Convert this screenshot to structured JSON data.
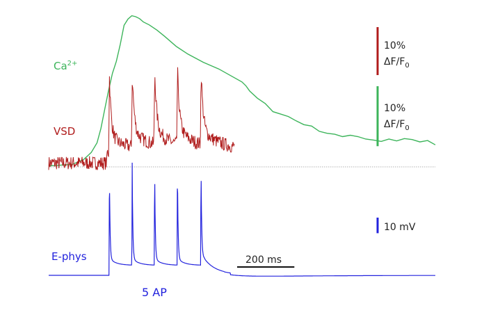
{
  "chart_data": {
    "type": "line",
    "title": "",
    "xlabel": "",
    "ylabel": "",
    "event_count": 5,
    "series": [
      {
        "name": "Ca²⁺",
        "label_main": "Ca",
        "label_sup": "2+",
        "color": "#3cb45a",
        "unit": "% ΔF/F0",
        "x": [
          0,
          60,
          90,
          110,
          125,
          135,
          145,
          155,
          165,
          175,
          185,
          195,
          205,
          215,
          225,
          235,
          245,
          260,
          280,
          300,
          330,
          360,
          400,
          440,
          480,
          500,
          510,
          520,
          540,
          560,
          580,
          600,
          620,
          640,
          660,
          680,
          700,
          720,
          740,
          760,
          780,
          800,
          820,
          840,
          860,
          880,
          900,
          920,
          940,
          960,
          980,
          1000
        ],
        "values": [
          0.2,
          0.5,
          1.5,
          3.0,
          5.0,
          8.0,
          12.0,
          16.0,
          19.5,
          22.0,
          25.5,
          29.5,
          30.8,
          31.5,
          31.3,
          30.9,
          30.2,
          29.6,
          28.5,
          27.2,
          25.1,
          23.5,
          21.8,
          20.4,
          18.6,
          17.7,
          16.9,
          15.8,
          14.3,
          13.2,
          11.5,
          11.0,
          10.5,
          9.6,
          8.8,
          8.5,
          7.4,
          7.0,
          6.8,
          6.3,
          6.6,
          6.3,
          5.8,
          5.6,
          5.3,
          5.8,
          5.4,
          5.9,
          5.7,
          5.2,
          5.5,
          4.6
        ]
      },
      {
        "name": "VSD",
        "color": "#b01c1c",
        "unit": "% ΔF/F0",
        "baseline": 0.8,
        "noise": 0.9,
        "spike_times": [
          157,
          216,
          274,
          333,
          394
        ],
        "spike_peak": 13.0,
        "x_range": [
          0,
          480
        ]
      },
      {
        "name": "E-phys",
        "color": "#2222dd",
        "unit": "mV",
        "baseline": 0.0,
        "spike_times": [
          157,
          216,
          274,
          333,
          394
        ],
        "spike_peak": 43.0,
        "x_range": [
          0,
          1000
        ]
      }
    ],
    "scale_bars": {
      "time": {
        "value": 200,
        "label": "200 ms"
      },
      "vsd": {
        "value": 10,
        "line1": "10%",
        "line2_main": "ΔF/F",
        "line2_sub": "0"
      },
      "ca": {
        "value": 10,
        "line1": "10%",
        "line2_main": "ΔF/F",
        "line2_sub": "0"
      },
      "voltage": {
        "value": 10,
        "label": "10 mV"
      }
    },
    "annotation": "5 AP",
    "baseline_dotted": true
  }
}
